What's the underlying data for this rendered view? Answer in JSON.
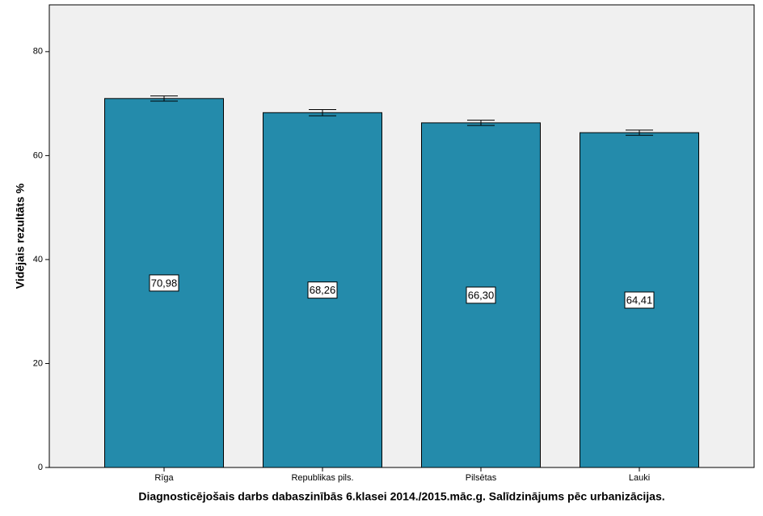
{
  "chart_data": {
    "type": "bar",
    "title": "Diagnosticējošais darbs dabaszinībās 6.klasei 2014./2015.māc.g. Salīdzinājums pēc urbanizācijas.",
    "y_label": "Vidējais rezultāts %",
    "categories": [
      "Rīga",
      "Republikas pils.",
      "Pilsētas",
      "Lauki"
    ],
    "values": [
      70.98,
      68.26,
      66.3,
      64.41
    ],
    "value_labels": [
      "70,98",
      "68,26",
      "66,30",
      "64,41"
    ],
    "errors": [
      0.5,
      0.6,
      0.5,
      0.5
    ],
    "color": "#248bab",
    "ylim": [
      0,
      89
    ],
    "yticks": [
      0,
      20,
      40,
      60,
      80
    ]
  }
}
